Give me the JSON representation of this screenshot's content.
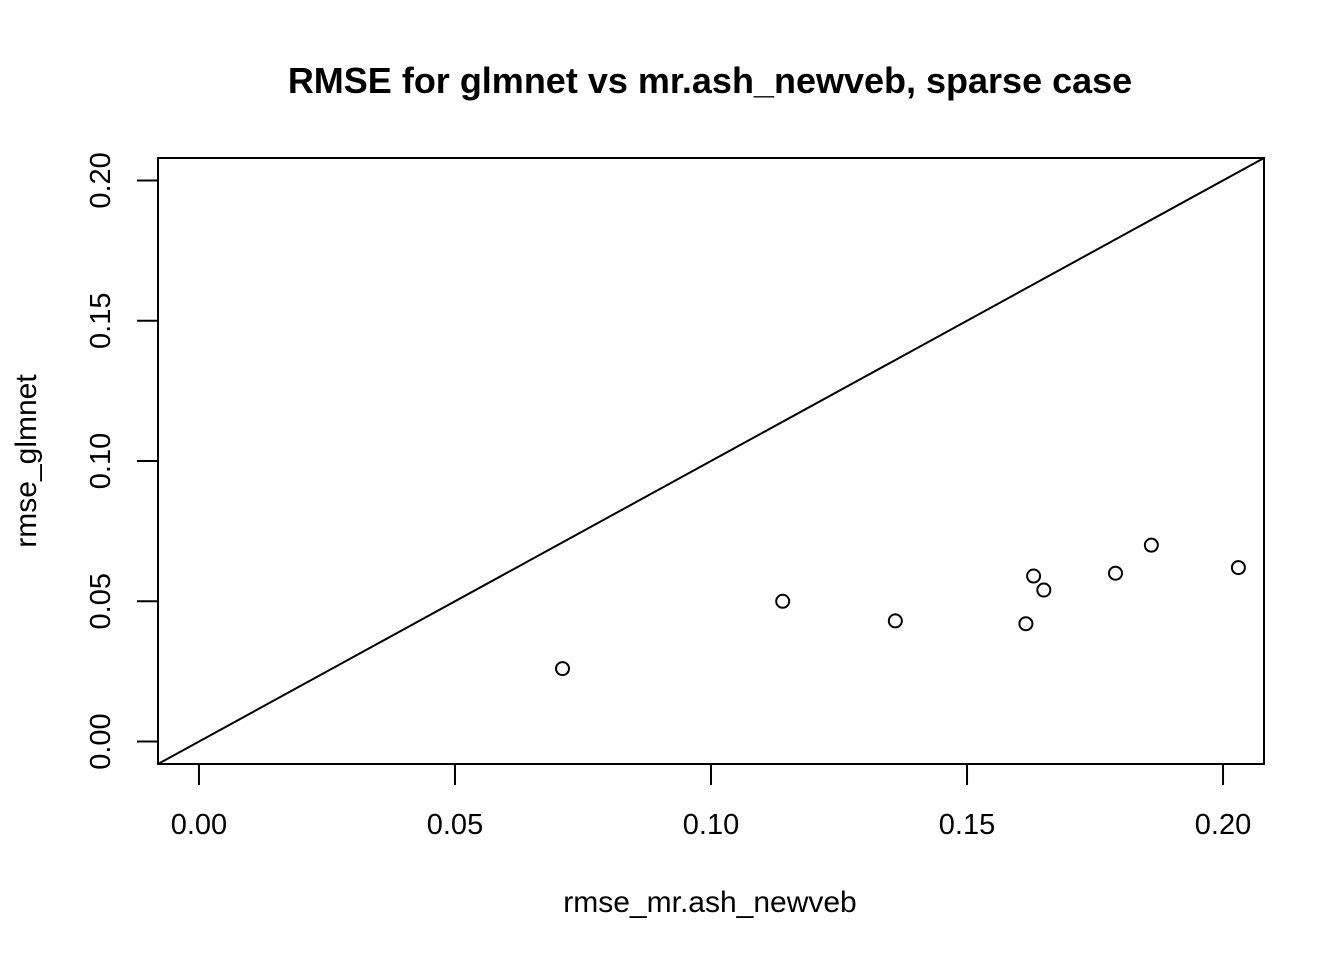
{
  "chart_data": {
    "type": "scatter",
    "title": "RMSE for glmnet vs mr.ash_newveb, sparse case",
    "xlabel": "rmse_mr.ash_newveb",
    "ylabel": "rmse_glmnet",
    "xlim": [
      -0.008,
      0.208
    ],
    "ylim": [
      -0.008,
      0.208
    ],
    "x_ticks": [
      "0.00",
      "0.05",
      "0.10",
      "0.15",
      "0.20"
    ],
    "y_ticks": [
      "0.00",
      "0.05",
      "0.10",
      "0.15",
      "0.20"
    ],
    "reference_line": "y = x",
    "grid": false,
    "points": [
      {
        "x": 0.071,
        "y": 0.026
      },
      {
        "x": 0.114,
        "y": 0.05
      },
      {
        "x": 0.136,
        "y": 0.043
      },
      {
        "x": 0.1615,
        "y": 0.042
      },
      {
        "x": 0.163,
        "y": 0.059
      },
      {
        "x": 0.165,
        "y": 0.054
      },
      {
        "x": 0.179,
        "y": 0.06
      },
      {
        "x": 0.186,
        "y": 0.07
      },
      {
        "x": 0.203,
        "y": 0.062
      }
    ]
  }
}
